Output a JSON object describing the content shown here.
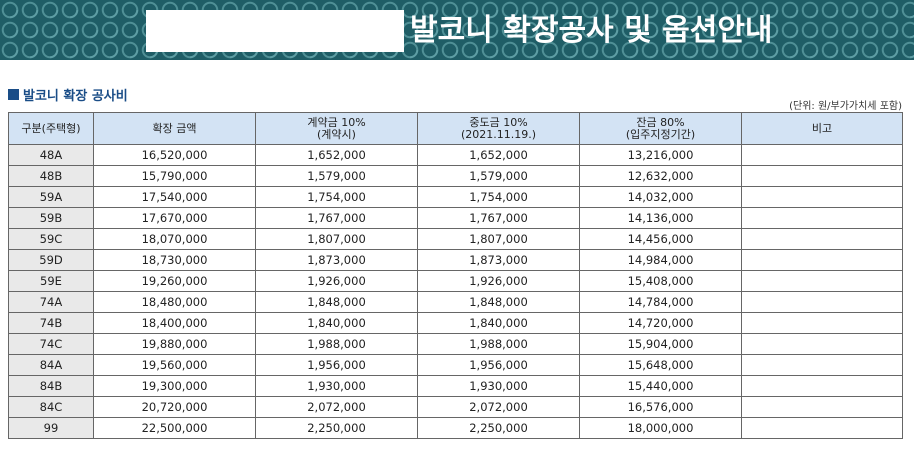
{
  "banner": {
    "title": "발코니 확장공사 및 옵션안내"
  },
  "section": {
    "title": "발코니 확장 공사비",
    "unit_note": "(단위: 원/부가가치세 포함)"
  },
  "table": {
    "headers": [
      {
        "line1": "구분(주택형)",
        "line2": ""
      },
      {
        "line1": "확장 금액",
        "line2": ""
      },
      {
        "line1": "계약금 10%",
        "line2": "(계약시)"
      },
      {
        "line1": "중도금 10%",
        "line2": "(2021.11.19.)"
      },
      {
        "line1": "잔금 80%",
        "line2": "(입주지정기간)"
      },
      {
        "line1": "비고",
        "line2": ""
      }
    ],
    "rows": [
      {
        "type": "48A",
        "amount": "16,520,000",
        "deposit": "1,652,000",
        "middle": "1,652,000",
        "balance": "13,216,000",
        "note": ""
      },
      {
        "type": "48B",
        "amount": "15,790,000",
        "deposit": "1,579,000",
        "middle": "1,579,000",
        "balance": "12,632,000",
        "note": ""
      },
      {
        "type": "59A",
        "amount": "17,540,000",
        "deposit": "1,754,000",
        "middle": "1,754,000",
        "balance": "14,032,000",
        "note": ""
      },
      {
        "type": "59B",
        "amount": "17,670,000",
        "deposit": "1,767,000",
        "middle": "1,767,000",
        "balance": "14,136,000",
        "note": ""
      },
      {
        "type": "59C",
        "amount": "18,070,000",
        "deposit": "1,807,000",
        "middle": "1,807,000",
        "balance": "14,456,000",
        "note": ""
      },
      {
        "type": "59D",
        "amount": "18,730,000",
        "deposit": "1,873,000",
        "middle": "1,873,000",
        "balance": "14,984,000",
        "note": ""
      },
      {
        "type": "59E",
        "amount": "19,260,000",
        "deposit": "1,926,000",
        "middle": "1,926,000",
        "balance": "15,408,000",
        "note": ""
      },
      {
        "type": "74A",
        "amount": "18,480,000",
        "deposit": "1,848,000",
        "middle": "1,848,000",
        "balance": "14,784,000",
        "note": ""
      },
      {
        "type": "74B",
        "amount": "18,400,000",
        "deposit": "1,840,000",
        "middle": "1,840,000",
        "balance": "14,720,000",
        "note": ""
      },
      {
        "type": "74C",
        "amount": "19,880,000",
        "deposit": "1,988,000",
        "middle": "1,988,000",
        "balance": "15,904,000",
        "note": ""
      },
      {
        "type": "84A",
        "amount": "19,560,000",
        "deposit": "1,956,000",
        "middle": "1,956,000",
        "balance": "15,648,000",
        "note": ""
      },
      {
        "type": "84B",
        "amount": "19,300,000",
        "deposit": "1,930,000",
        "middle": "1,930,000",
        "balance": "15,440,000",
        "note": ""
      },
      {
        "type": "84C",
        "amount": "20,720,000",
        "deposit": "2,072,000",
        "middle": "2,072,000",
        "balance": "16,576,000",
        "note": ""
      },
      {
        "type": "99",
        "amount": "22,500,000",
        "deposit": "2,250,000",
        "middle": "2,250,000",
        "balance": "18,000,000",
        "note": ""
      }
    ]
  },
  "colors": {
    "banner_bg": "#1f5d66",
    "section_title": "#1a4d87",
    "header_bg": "#d3e3f4",
    "type_cell_bg": "#e9e9e9"
  }
}
